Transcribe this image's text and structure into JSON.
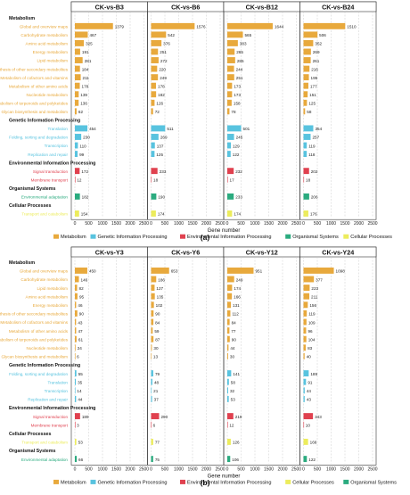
{
  "panels": [
    {
      "label": "(a)",
      "xlabel": "Gene number",
      "xlim": [
        0,
        2500
      ],
      "xticks": [
        "0",
        "500",
        "1000",
        "1500",
        "2000",
        "2500"
      ],
      "rows": [
        {
          "kind": "header",
          "text": "Metabolism"
        },
        {
          "kind": "bar",
          "text": "Global and overview maps",
          "group": "Metabolism"
        },
        {
          "kind": "bar",
          "text": "Carbohydrate metabolism",
          "group": "Metabolism"
        },
        {
          "kind": "bar",
          "text": "Amino acid metabolism",
          "group": "Metabolism"
        },
        {
          "kind": "bar",
          "text": "Energy metabolism",
          "group": "Metabolism"
        },
        {
          "kind": "bar",
          "text": "Lipid metabolism",
          "group": "Metabolism"
        },
        {
          "kind": "bar",
          "text": "Biosynthesis of other secondary metabolites",
          "group": "Metabolism"
        },
        {
          "kind": "bar",
          "text": "Metabolism of cofactors and vitamins",
          "group": "Metabolism"
        },
        {
          "kind": "bar",
          "text": "Metabolism of other amino acids",
          "group": "Metabolism"
        },
        {
          "kind": "bar",
          "text": "Nucleotide metabolism",
          "group": "Metabolism"
        },
        {
          "kind": "bar",
          "text": "Metabolism of terpenoids and polyketides",
          "group": "Metabolism"
        },
        {
          "kind": "bar",
          "text": "Glycan biosynthesis and metabolism",
          "group": "Metabolism"
        },
        {
          "kind": "header",
          "text": "Genetic Information Processing"
        },
        {
          "kind": "bar",
          "text": "Translation",
          "group": "Genetic Information Processing"
        },
        {
          "kind": "bar",
          "text": "Folding, sorting and degradation",
          "group": "Genetic Information Processing"
        },
        {
          "kind": "bar",
          "text": "Transcription",
          "group": "Genetic Information Processing"
        },
        {
          "kind": "bar",
          "text": "Replication and repair",
          "group": "Genetic Information Processing"
        },
        {
          "kind": "header",
          "text": "Environmental Information Processing"
        },
        {
          "kind": "bar",
          "text": "Signal transduction",
          "group": "Environmental Information Processing"
        },
        {
          "kind": "bar",
          "text": "Membrane transport",
          "group": "Environmental Information Processing"
        },
        {
          "kind": "header",
          "text": "Organismal Systems"
        },
        {
          "kind": "bar",
          "text": "Environmental adaptation",
          "group": "Organismal Systems"
        },
        {
          "kind": "header",
          "text": "Cellular Processes"
        },
        {
          "kind": "bar",
          "text": "Transport and catabolism",
          "group": "Cellular Processes"
        }
      ],
      "legend": [
        "Metabolism",
        "Genetic Information Processing",
        "Environmental Information Processing",
        "Organismal Systems",
        "Cellular Processes"
      ]
    },
    {
      "label": "(b)",
      "xlabel": "Gene number",
      "xlim": [
        0,
        2500
      ],
      "xticks": [
        "0",
        "500",
        "1000",
        "1500",
        "2000",
        "2500"
      ],
      "rows": [
        {
          "kind": "header",
          "text": "Metabolism"
        },
        {
          "kind": "bar",
          "text": "Global and overview maps",
          "group": "Metabolism"
        },
        {
          "kind": "bar",
          "text": "Carbohydrate metabolism",
          "group": "Metabolism"
        },
        {
          "kind": "bar",
          "text": "Lipid metabolism",
          "group": "Metabolism"
        },
        {
          "kind": "bar",
          "text": "Amino acid metabolism",
          "group": "Metabolism"
        },
        {
          "kind": "bar",
          "text": "Energy metabolism",
          "group": "Metabolism"
        },
        {
          "kind": "bar",
          "text": "Biosynthesis of other secondary metabolites",
          "group": "Metabolism"
        },
        {
          "kind": "bar",
          "text": "Metabolism of cofactors and vitamins",
          "group": "Metabolism"
        },
        {
          "kind": "bar",
          "text": "Metabolism of other amino acids",
          "group": "Metabolism"
        },
        {
          "kind": "bar",
          "text": "Metabolism of terpenoids and polyketides",
          "group": "Metabolism"
        },
        {
          "kind": "bar",
          "text": "Nucleotide metabolism",
          "group": "Metabolism"
        },
        {
          "kind": "bar",
          "text": "Glycan biosynthesis and metabolism",
          "group": "Metabolism"
        },
        {
          "kind": "header",
          "text": "Genetic Information Processing"
        },
        {
          "kind": "bar",
          "text": "Folding, sorting and degradation",
          "group": "Genetic Information Processing"
        },
        {
          "kind": "bar",
          "text": "Translation",
          "group": "Genetic Information Processing"
        },
        {
          "kind": "bar",
          "text": "Transcription",
          "group": "Genetic Information Processing"
        },
        {
          "kind": "bar",
          "text": "Replication and repair",
          "group": "Genetic Information Processing"
        },
        {
          "kind": "header",
          "text": "Environmental Information Processing"
        },
        {
          "kind": "bar",
          "text": "Signal transduction",
          "group": "Environmental Information Processing"
        },
        {
          "kind": "bar",
          "text": "Membrane transport",
          "group": "Environmental Information Processing"
        },
        {
          "kind": "header",
          "text": "Cellular Processes"
        },
        {
          "kind": "bar",
          "text": "Transport and catabolism",
          "group": "Cellular Processes"
        },
        {
          "kind": "header",
          "text": "Organismal Systems"
        },
        {
          "kind": "bar",
          "text": "Environmental adaptation",
          "group": "Organismal Systems"
        }
      ],
      "legend": [
        "Metabolism",
        "Genetic Information Processing",
        "Environmental Information Processing",
        "Cellular Processes",
        "Organismal Systems"
      ]
    }
  ],
  "colors": {
    "Metabolism": "#e8a93c",
    "Genetic Information Processing": "#58c3df",
    "Environmental Information Processing": "#e0414f",
    "Organismal Systems": "#2bab7f",
    "Cellular Processes": "#ecec5c",
    "headerText": "#111111",
    "grid": "#cccccc"
  },
  "chart_data": [
    {
      "type": "bar",
      "orientation": "horizontal",
      "categories": [
        "Global and overview maps",
        "Carbohydrate metabolism",
        "Amino acid metabolism",
        "Energy metabolism",
        "Lipid metabolism",
        "Biosynthesis of other secondary metabolites",
        "Metabolism of cofactors and vitamins",
        "Metabolism of other amino acids",
        "Nucleotide metabolism",
        "Metabolism of terpenoids and polyketides",
        "Glycan biosynthesis and metabolism",
        "Translation",
        "Folding, sorting and degradation",
        "Transcription",
        "Replication and repair",
        "Signal transduction",
        "Membrane transport",
        "Environmental adaptation",
        "Transport and catabolism"
      ],
      "series": [
        {
          "name": "CK-vs-B3",
          "values": [
            1379,
            467,
            325,
            191,
            281,
            184,
            211,
            178,
            139,
            136,
            62,
            454,
            230,
            110,
            99,
            172,
            12,
            182,
            154
          ]
        },
        {
          "name": "CK-vs-B6",
          "values": [
            1576,
            542,
            376,
            251,
            272,
            220,
            249,
            178,
            182,
            126,
            72,
            511,
            269,
            137,
            125,
            233,
            18,
            190,
            174
          ]
        },
        {
          "name": "CK-vs-B12",
          "values": [
            1644,
            565,
            383,
            265,
            285,
            244,
            251,
            173,
            173,
            158,
            78,
            501,
            245,
            129,
            122,
            232,
            17,
            233,
            174
          ]
        },
        {
          "name": "CK-vs-B24",
          "values": [
            1510,
            506,
            352,
            269,
            261,
            216,
            195,
            177,
            151,
            125,
            58,
            354,
            257,
            119,
            118,
            202,
            18,
            206,
            176
          ]
        }
      ],
      "xlabel": "Gene number",
      "xlim": [
        0,
        2500
      ]
    },
    {
      "type": "bar",
      "orientation": "horizontal",
      "categories": [
        "Global and overview maps",
        "Carbohydrate metabolism",
        "Lipid metabolism",
        "Amino acid metabolism",
        "Energy metabolism",
        "Biosynthesis of other secondary metabolites",
        "Metabolism of cofactors and vitamins",
        "Metabolism of other amino acids",
        "Metabolism of terpenoids and polyketides",
        "Nucleotide metabolism",
        "Glycan biosynthesis and metabolism",
        "Folding, sorting and degradation",
        "Translation",
        "Transcription",
        "Replication and repair",
        "Signal transduction",
        "Membrane transport",
        "Transport and catabolism",
        "Environmental adaptation"
      ],
      "series": [
        {
          "name": "CK-vs-Y3",
          "values": [
            450,
            146,
            82,
            95,
            46,
            90,
            43,
            47,
            61,
            24,
            6,
            55,
            35,
            14,
            44,
            189,
            3,
            53,
            66
          ]
        },
        {
          "name": "CK-vs-Y6",
          "values": [
            653,
            186,
            127,
            135,
            102,
            90,
            84,
            59,
            87,
            30,
            13,
            79,
            48,
            21,
            37,
            290,
            6,
            77,
            75
          ]
        },
        {
          "name": "CK-vs-Y12",
          "values": [
            951,
            249,
            174,
            166,
            131,
            112,
            84,
            77,
            90,
            44,
            30,
            141,
            58,
            32,
            53,
            219,
            12,
            126,
            106
          ]
        },
        {
          "name": "CK-vs-Y24",
          "values": [
            1098,
            377,
            223,
            211,
            156,
            119,
            109,
            96,
            104,
            83,
            40,
            189,
            91,
            44,
            43,
            343,
            10,
            166,
            122
          ]
        }
      ],
      "xlabel": "Gene number",
      "xlim": [
        0,
        2500
      ]
    }
  ]
}
